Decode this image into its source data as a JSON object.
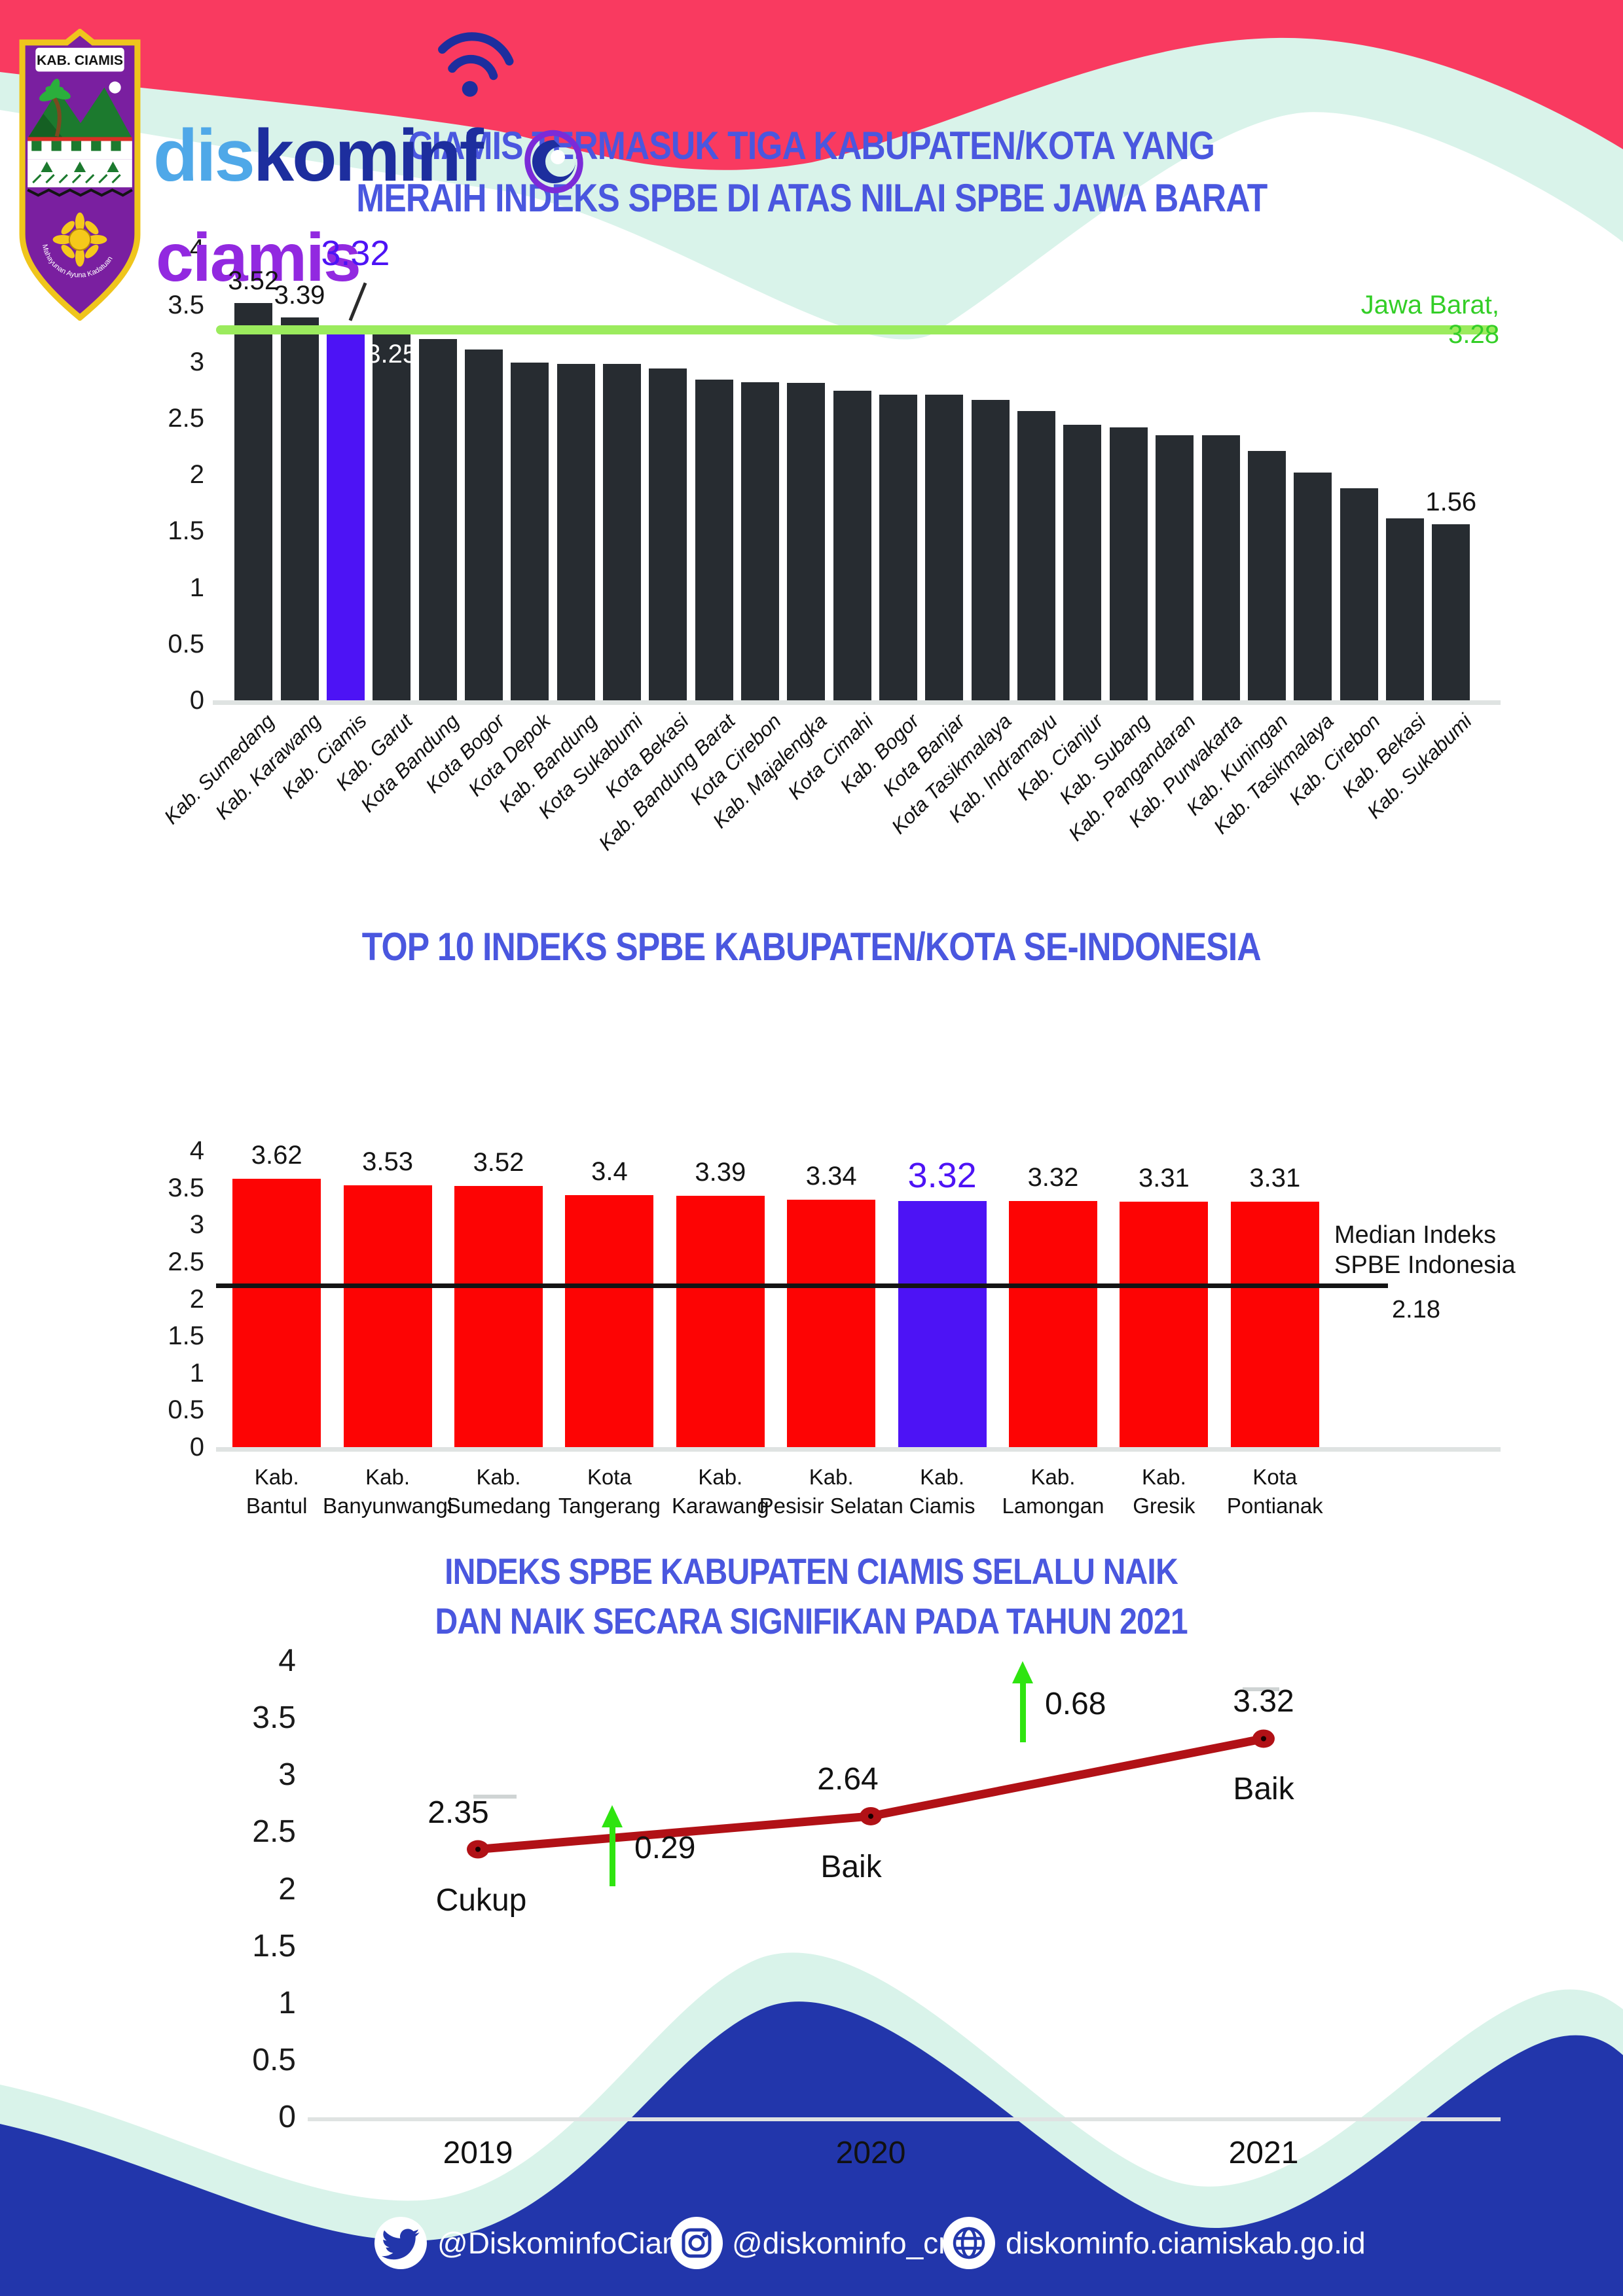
{
  "colors": {
    "title_blue": "#4A57DF",
    "pink": "#F93A60",
    "mint": "#D9F3EA",
    "bar_dark": "#272C31",
    "highlight_purple": "#4D13F5",
    "bar_red": "#FD0404",
    "ref_green_line": "#9BEB5D",
    "ref_green_text": "#33CE27",
    "median_black": "#141414",
    "line_dark_red": "#B11116",
    "arrow_green": "#2FE410",
    "footer_blue": "#2236AB",
    "axis_gray": "#DFE3E2",
    "label_dark": "#141414",
    "white": "#FFFFFF"
  },
  "logo": {
    "brand_dis": "dis",
    "brand_kominf": "kominf",
    "brand_ciamis": "ciamis",
    "shield_caption": "KAB. CIAMIS",
    "shield_motto": "Mahayunan Ayuna Kadatuan"
  },
  "chart_data": [
    {
      "type": "bar",
      "title_lines": [
        "CIAMIS TERMASUK TIGA KABUPATEN/KOTA YANG",
        "MERAIH INDEKS SPBE DI ATAS NILAI SPBE JAWA BARAT"
      ],
      "ylim": [
        0,
        4
      ],
      "yticks": [
        "4",
        "3.5",
        "3",
        "2.5",
        "2",
        "1.5",
        "1",
        "0.5",
        "0"
      ],
      "grid": false,
      "ref_line": {
        "value": 3.28,
        "label": "Jawa Barat, 3.28"
      },
      "categories": [
        "Kab. Sumedang",
        "Kab. Karawang",
        "Kab. Ciamis",
        "Kab. Garut",
        "Kota Bandung",
        "Kota Bogor",
        "Kota Depok",
        "Kab. Bandung",
        "Kota Sukabumi",
        "Kota Bekasi",
        "Kab. Bandung Barat",
        "Kota Cirebon",
        "Kab. Majalengka",
        "Kota Cimahi",
        "Kab. Bogor",
        "Kota Banjar",
        "Kota Tasikmalaya",
        "Kab. Indramayu",
        "Kab. Cianjur",
        "Kab. Subang",
        "Kab. Pangandaran",
        "Kab. Purwakarta",
        "Kab. Kuningan",
        "Kab. Tasikmalaya",
        "Kab. Cirebon",
        "Kab. Bekasi",
        "Kab. Sukabumi"
      ],
      "values": [
        3.52,
        3.39,
        3.32,
        3.25,
        3.2,
        3.11,
        2.99,
        2.98,
        2.98,
        2.94,
        2.84,
        2.82,
        2.81,
        2.74,
        2.71,
        2.71,
        2.66,
        2.56,
        2.44,
        2.42,
        2.35,
        2.35,
        2.21,
        2.02,
        1.88,
        1.61,
        1.56
      ],
      "highlight_index": 2,
      "value_labels": [
        {
          "index": 0,
          "text": "3.52",
          "style": "above"
        },
        {
          "index": 1,
          "text": "3.39",
          "style": "above"
        },
        {
          "index": 2,
          "text": "3.32",
          "style": "callout"
        },
        {
          "index": 3,
          "text": "3.25",
          "style": "inside"
        },
        {
          "index": 26,
          "text": "1.56",
          "style": "above"
        }
      ]
    },
    {
      "type": "bar",
      "title": "TOP 10 INDEKS SPBE KABUPATEN/KOTA SE-INDONESIA",
      "ylim": [
        0,
        4
      ],
      "yticks": [
        "4",
        "3.5",
        "3",
        "2.5",
        "2",
        "1.5",
        "1",
        "0.5",
        "0"
      ],
      "grid": false,
      "categories": [
        [
          "Kab.",
          "Bantul"
        ],
        [
          "Kab.",
          "Banyunwangi"
        ],
        [
          "Kab.",
          "Sumedang"
        ],
        [
          "Kota",
          "Tangerang"
        ],
        [
          "Kab.",
          "Karawang"
        ],
        [
          "Kab.",
          "Pesisir Selatan"
        ],
        [
          "Kab.",
          "Ciamis"
        ],
        [
          "Kab.",
          "Lamongan"
        ],
        [
          "Kab.",
          "Gresik"
        ],
        [
          "Kota",
          "Pontianak"
        ]
      ],
      "values": [
        3.62,
        3.53,
        3.52,
        3.4,
        3.39,
        3.34,
        3.32,
        3.32,
        3.31,
        3.31
      ],
      "value_labels": [
        "3.62",
        "3.53",
        "3.52",
        "3.4",
        "3.39",
        "3.34",
        "3.32",
        "3.32",
        "3.31",
        "3.31"
      ],
      "highlight_index": 6,
      "median_line": {
        "value": 2.18,
        "label_lines": [
          "Median Indeks",
          "SPBE Indonesia"
        ],
        "value_label": "2.18"
      }
    },
    {
      "type": "line",
      "title_lines": [
        "INDEKS SPBE KABUPATEN CIAMIS SELALU NAIK",
        "DAN NAIK SECARA SIGNIFIKAN PADA TAHUN 2021"
      ],
      "ylim": [
        0,
        4
      ],
      "yticks": [
        "4",
        "3.5",
        "3",
        "2.5",
        "2",
        "1.5",
        "1",
        "0.5",
        "0"
      ],
      "grid": false,
      "x": [
        "2019",
        "2020",
        "2021"
      ],
      "values": [
        2.35,
        2.64,
        3.32
      ],
      "point_labels": [
        "2.35",
        "2.64",
        "3.32"
      ],
      "point_notes": [
        "Cukup",
        "Baik",
        "Baik"
      ],
      "increase_arrows": [
        "0.29",
        "0.68"
      ]
    }
  ],
  "footer": {
    "items": [
      {
        "icon": "twitter-icon",
        "text": "@DiskominfoCiam1"
      },
      {
        "icon": "instagram-icon",
        "text": "@diskominfo_cms"
      },
      {
        "icon": "globe-icon",
        "text": "diskominfo.ciamiskab.go.id"
      }
    ]
  }
}
